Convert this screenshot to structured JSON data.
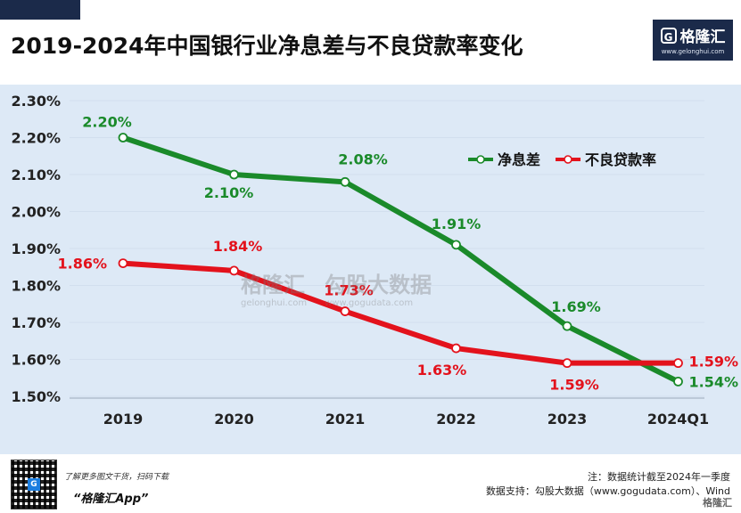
{
  "header": {
    "title": "2019-2024年中国银行业净息差与不良贷款率变化"
  },
  "logo": {
    "icon": "G",
    "name": "格隆汇",
    "url": "www.gelonghui.com"
  },
  "watermark": {
    "left": "格隆汇",
    "left_sub": "gelonghui.com",
    "right": "勾股大数据",
    "right_sub": "www.gogudata.com"
  },
  "chart_data": {
    "type": "line",
    "title": "2019-2024年中国银行业净息差与不良贷款率变化",
    "categories": [
      "2019",
      "2020",
      "2021",
      "2022",
      "2023",
      "2024Q1"
    ],
    "ylim": [
      1.5,
      2.3
    ],
    "yticks": [
      "1.50%",
      "1.60%",
      "1.70%",
      "1.80%",
      "1.90%",
      "2.00%",
      "2.10%",
      "2.20%",
      "2.30%"
    ],
    "legend_position": "top-right",
    "series": [
      {
        "name": "净息差",
        "color": "#1a8a2a",
        "values": [
          2.2,
          2.1,
          2.08,
          1.91,
          1.69,
          1.54
        ],
        "labels": [
          "2.20%",
          "2.10%",
          "2.08%",
          "1.91%",
          "1.69%",
          "1.54%"
        ]
      },
      {
        "name": "不良贷款率",
        "color": "#e3121c",
        "values": [
          1.86,
          1.84,
          1.73,
          1.63,
          1.59,
          1.59
        ],
        "labels": [
          "1.86%",
          "1.84%",
          "1.73%",
          "1.63%",
          "1.59%",
          "1.59%"
        ]
      }
    ]
  },
  "footer": {
    "qr_icon": "G",
    "promo_line1": "了解更多图文干货，扫码下载",
    "promo_line2": "“格隆汇App”",
    "note": "注：数据统计截至2024年一季度",
    "source": "数据支持：勾股大数据（www.gogudata.com）、Wind",
    "corner_logo": "格隆汇"
  }
}
